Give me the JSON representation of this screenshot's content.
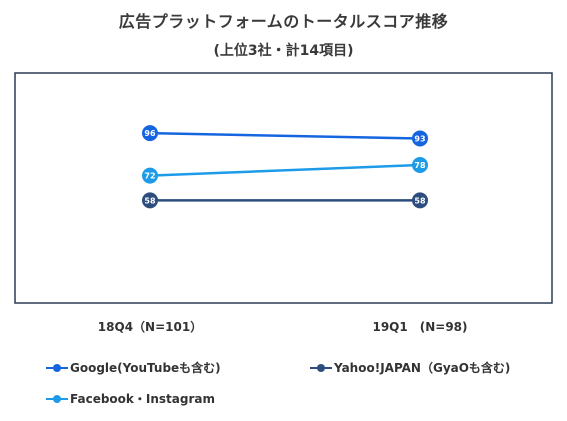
{
  "chart_data": {
    "type": "line",
    "title": "広告プラットフォームのトータルスコア推移",
    "subtitle": "(上位3社・計14項目)",
    "categories": [
      "18Q4（N=101）",
      "19Q1　(N=98)"
    ],
    "ylim": [
      0,
      130
    ],
    "grid": false,
    "legend_position": "bottom",
    "series": [
      {
        "name": "Google(YouTubeも含む)",
        "values": [
          96,
          93
        ],
        "color": "#1565e0"
      },
      {
        "name": "Yahoo!JAPAN（GyaOも含む)",
        "values": [
          58,
          58
        ],
        "color": "#2c4d7e"
      },
      {
        "name": "Facebook・Instagram",
        "values": [
          72,
          78
        ],
        "color": "#1e9be8"
      }
    ]
  }
}
